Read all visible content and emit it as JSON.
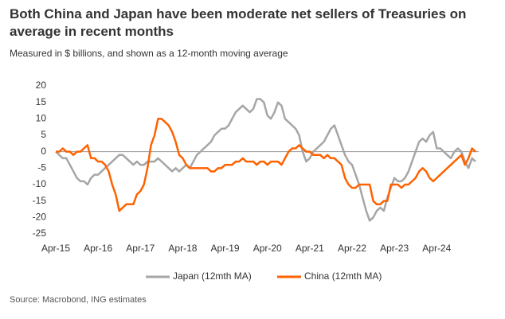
{
  "chart_data": {
    "type": "line",
    "title": "Both China and Japan have been moderate net sellers of Treasuries on average in recent months",
    "subtitle": "Measured in $ billions, and shown as a 12-month moving average",
    "source": "Source: Macrobond, ING estimates",
    "categories": [
      "Apr-15",
      null,
      null,
      null,
      null,
      null,
      null,
      null,
      null,
      null,
      null,
      null,
      "Apr-16",
      null,
      null,
      null,
      null,
      null,
      null,
      null,
      null,
      null,
      null,
      null,
      "Apr-17",
      null,
      null,
      null,
      null,
      null,
      null,
      null,
      null,
      null,
      null,
      null,
      "Apr-18",
      null,
      null,
      null,
      null,
      null,
      null,
      null,
      null,
      null,
      null,
      null,
      "Apr-19",
      null,
      null,
      null,
      null,
      null,
      null,
      null,
      null,
      null,
      null,
      null,
      "Apr-20",
      null,
      null,
      null,
      null,
      null,
      null,
      null,
      null,
      null,
      null,
      null,
      "Apr-21",
      null,
      null,
      null,
      null,
      null,
      null,
      null,
      null,
      null,
      null,
      null,
      "Apr-22",
      null,
      null,
      null,
      null,
      null,
      null,
      null,
      null,
      null,
      null,
      null,
      "Apr-23",
      null,
      null,
      null,
      null,
      null,
      null,
      null,
      null,
      null,
      null,
      null,
      "Apr-24",
      null,
      null,
      null,
      null,
      null,
      null,
      null,
      null,
      null,
      null,
      null
    ],
    "series": [
      {
        "name": "Japan (12mth MA)",
        "color": "#a6a6a6",
        "values": [
          0,
          -1,
          -2,
          -2,
          -4,
          -6,
          -8,
          -9,
          -9,
          -10,
          -8,
          -7,
          -7,
          -6,
          -5,
          -4,
          -3,
          -2,
          -1,
          -1,
          -2,
          -3,
          -4,
          -3,
          -4,
          -4,
          -3,
          -3,
          -3,
          -2,
          -3,
          -4,
          -5,
          -6,
          -5,
          -6,
          -5,
          -4,
          -5,
          -3,
          -1,
          0,
          1,
          2,
          3,
          5,
          6,
          7,
          7,
          8,
          10,
          12,
          13,
          14,
          13,
          12,
          13,
          16,
          16,
          15,
          11,
          10,
          12,
          15,
          14,
          10,
          9,
          8,
          7,
          5,
          0,
          -3,
          -2,
          0,
          1,
          2,
          3,
          5,
          7,
          8,
          5,
          2,
          -1,
          -3,
          -4,
          -7,
          -10,
          -14,
          -18,
          -21,
          -20,
          -18,
          -17,
          -18,
          -14,
          -11,
          -8,
          -9,
          -9,
          -8,
          -6,
          -3,
          0,
          3,
          4,
          3,
          5,
          6,
          1,
          1,
          0,
          -1,
          -2,
          0,
          1,
          0,
          -3,
          -5,
          -2,
          -3
        ]
      },
      {
        "name": "China (12mth MA)",
        "color": "#ff6200",
        "values": [
          0,
          0,
          1,
          0,
          0,
          -1,
          0,
          0,
          1,
          2,
          -2,
          -2,
          -3,
          -3,
          -4,
          -6,
          -10,
          -13,
          -18,
          -17,
          -16,
          -16,
          -16,
          -13,
          -12,
          -10,
          -5,
          2,
          5,
          10,
          10,
          9,
          8,
          6,
          3,
          -1,
          -2,
          -4,
          -5,
          -5,
          -5,
          -5,
          -5,
          -5,
          -6,
          -6,
          -5,
          -5,
          -4,
          -4,
          -4,
          -3,
          -3,
          -2,
          -3,
          -3,
          -3,
          -4,
          -3,
          -3,
          -4,
          -3,
          -3,
          -3,
          -4,
          -2,
          0,
          1,
          1,
          2,
          1,
          0,
          0,
          -1,
          -1,
          -1,
          -2,
          -1,
          -2,
          -2,
          -3,
          -4,
          -8,
          -10,
          -11,
          -11,
          -10,
          -10,
          -10,
          -10,
          -15,
          -16,
          -16,
          -15,
          -15,
          -10,
          -10,
          -10,
          -11,
          -10,
          -10,
          -9,
          -8,
          -6,
          -5,
          -6,
          -8,
          -9,
          -8,
          -7,
          -6,
          -5,
          -4,
          -3,
          -2,
          -1,
          -4,
          -2,
          1,
          0
        ]
      }
    ],
    "ylim": [
      -25,
      20
    ],
    "yticks": [
      -25,
      -20,
      -15,
      -10,
      -5,
      0,
      5,
      10,
      15,
      20
    ],
    "grid": false,
    "legend": "bottom"
  }
}
